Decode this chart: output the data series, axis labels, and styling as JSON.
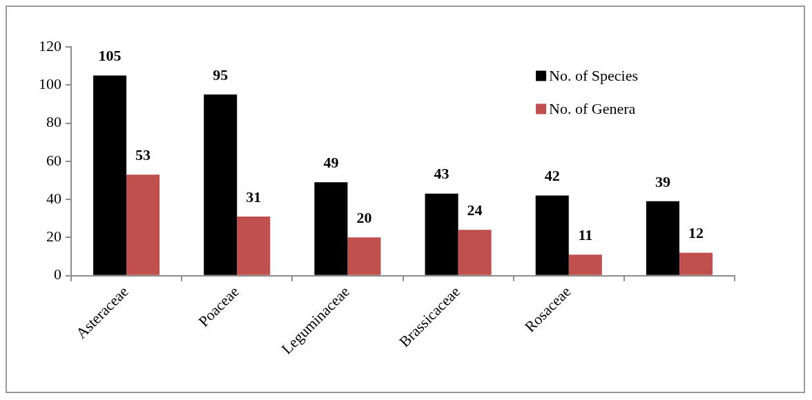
{
  "chart_data": {
    "type": "bar",
    "categories": [
      "Asteraceae",
      "Poaceae",
      "Leguminaceae",
      "Brassicaceae",
      "Rosaceae",
      null
    ],
    "series": [
      {
        "name": "No. of Species",
        "color": "#000000",
        "values": [
          105,
          95,
          49,
          43,
          42,
          39
        ]
      },
      {
        "name": "No. of Genera",
        "color": "#c0504d",
        "values": [
          53,
          31,
          20,
          24,
          11,
          12
        ]
      }
    ],
    "ylim": [
      0,
      120
    ],
    "yticks": [
      0,
      20,
      40,
      60,
      80,
      100,
      120
    ],
    "legend": "top right",
    "data_labels": true
  }
}
